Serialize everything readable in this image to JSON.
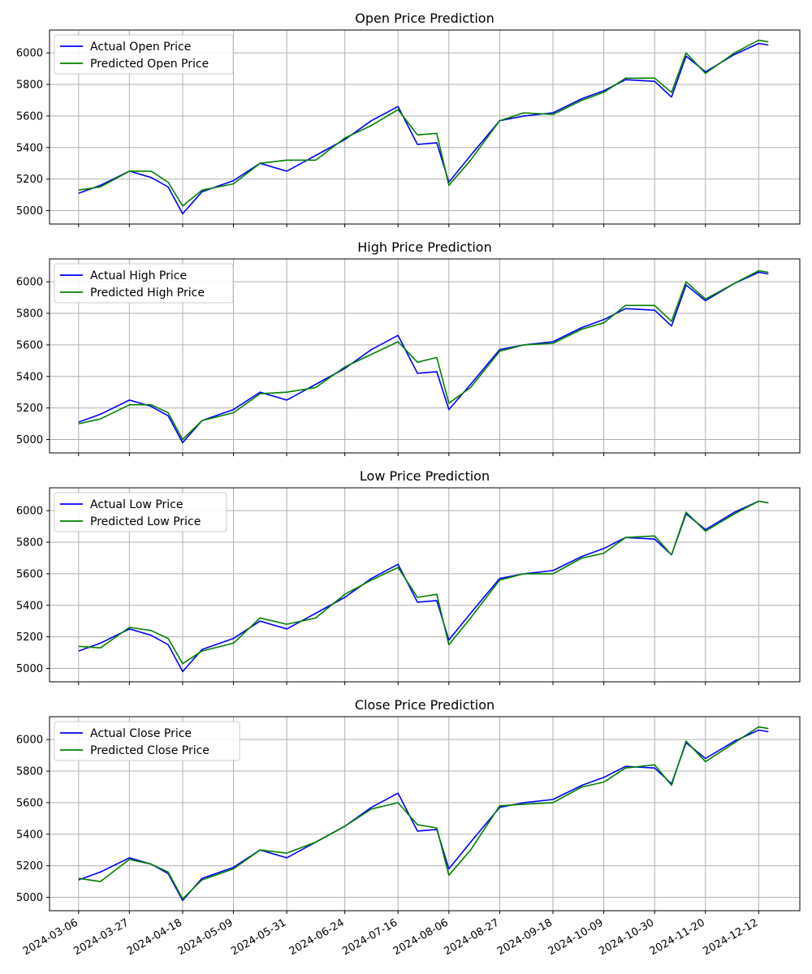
{
  "colors": {
    "actual": "#0000ff",
    "predicted": "#008000",
    "grid": "#b0b0b0",
    "axis": "#000000"
  },
  "x_axis": {
    "ticks": [
      "2024-03-06",
      "2024-03-27",
      "2024-04-18",
      "2024-05-09",
      "2024-05-31",
      "2024-06-24",
      "2024-07-16",
      "2024-08-06",
      "2024-08-27",
      "2024-09-18",
      "2024-10-09",
      "2024-10-30",
      "2024-11-20",
      "2024-12-12"
    ],
    "range": [
      "2024-02-23",
      "2024-12-29"
    ]
  },
  "chart_data": [
    {
      "type": "line",
      "title": "Open Price Prediction",
      "ylim": [
        4915,
        6145
      ],
      "yticks": [
        5000,
        5200,
        5400,
        5600,
        5800,
        6000
      ],
      "grid": true,
      "legend_position": "top-left",
      "x": [
        "2024-03-06",
        "2024-03-15",
        "2024-03-27",
        "2024-04-05",
        "2024-04-12",
        "2024-04-18",
        "2024-04-26",
        "2024-05-09",
        "2024-05-20",
        "2024-05-31",
        "2024-06-12",
        "2024-06-24",
        "2024-07-05",
        "2024-07-16",
        "2024-07-24",
        "2024-08-01",
        "2024-08-06",
        "2024-08-15",
        "2024-08-27",
        "2024-09-06",
        "2024-09-18",
        "2024-09-30",
        "2024-10-09",
        "2024-10-18",
        "2024-10-30",
        "2024-11-06",
        "2024-11-12",
        "2024-11-20",
        "2024-12-02",
        "2024-12-12",
        "2024-12-16"
      ],
      "series": [
        {
          "name": "Actual Open Price",
          "values": [
            5110,
            5160,
            5250,
            5210,
            5150,
            4980,
            5120,
            5190,
            5300,
            5250,
            5350,
            5450,
            5570,
            5660,
            5420,
            5430,
            5180,
            5350,
            5570,
            5600,
            5620,
            5710,
            5760,
            5830,
            5820,
            5720,
            5980,
            5880,
            5990,
            6060,
            6050
          ]
        },
        {
          "name": "Predicted Open Price",
          "values": [
            5130,
            5150,
            5250,
            5250,
            5180,
            5030,
            5130,
            5170,
            5300,
            5320,
            5320,
            5460,
            5540,
            5640,
            5480,
            5490,
            5160,
            5320,
            5570,
            5620,
            5610,
            5700,
            5750,
            5840,
            5840,
            5750,
            6000,
            5870,
            6000,
            6080,
            6070
          ]
        }
      ]
    },
    {
      "type": "line",
      "title": "High Price Prediction",
      "ylim": [
        4915,
        6145
      ],
      "yticks": [
        5000,
        5200,
        5400,
        5600,
        5800,
        6000
      ],
      "grid": true,
      "legend_position": "top-left",
      "x": [
        "2024-03-06",
        "2024-03-15",
        "2024-03-27",
        "2024-04-05",
        "2024-04-12",
        "2024-04-18",
        "2024-04-26",
        "2024-05-09",
        "2024-05-20",
        "2024-05-31",
        "2024-06-12",
        "2024-06-24",
        "2024-07-05",
        "2024-07-16",
        "2024-07-24",
        "2024-08-01",
        "2024-08-06",
        "2024-08-15",
        "2024-08-27",
        "2024-09-06",
        "2024-09-18",
        "2024-09-30",
        "2024-10-09",
        "2024-10-18",
        "2024-10-30",
        "2024-11-06",
        "2024-11-12",
        "2024-11-20",
        "2024-12-02",
        "2024-12-12",
        "2024-12-16"
      ],
      "series": [
        {
          "name": "Actual High Price",
          "values": [
            5110,
            5160,
            5250,
            5210,
            5150,
            4980,
            5120,
            5190,
            5300,
            5250,
            5350,
            5450,
            5570,
            5660,
            5420,
            5430,
            5190,
            5350,
            5570,
            5600,
            5620,
            5710,
            5760,
            5830,
            5820,
            5720,
            5980,
            5880,
            5990,
            6060,
            6050
          ]
        },
        {
          "name": "Predicted High Price",
          "values": [
            5100,
            5130,
            5220,
            5220,
            5170,
            5000,
            5120,
            5170,
            5290,
            5300,
            5330,
            5460,
            5540,
            5620,
            5490,
            5520,
            5230,
            5330,
            5560,
            5600,
            5610,
            5700,
            5740,
            5850,
            5850,
            5750,
            6000,
            5890,
            5990,
            6070,
            6060
          ]
        }
      ]
    },
    {
      "type": "line",
      "title": "Low Price Prediction",
      "ylim": [
        4915,
        6145
      ],
      "yticks": [
        5000,
        5200,
        5400,
        5600,
        5800,
        6000
      ],
      "grid": true,
      "legend_position": "top-left",
      "x": [
        "2024-03-06",
        "2024-03-15",
        "2024-03-27",
        "2024-04-05",
        "2024-04-12",
        "2024-04-18",
        "2024-04-26",
        "2024-05-09",
        "2024-05-20",
        "2024-05-31",
        "2024-06-12",
        "2024-06-24",
        "2024-07-05",
        "2024-07-16",
        "2024-07-24",
        "2024-08-01",
        "2024-08-06",
        "2024-08-15",
        "2024-08-27",
        "2024-09-06",
        "2024-09-18",
        "2024-09-30",
        "2024-10-09",
        "2024-10-18",
        "2024-10-30",
        "2024-11-06",
        "2024-11-12",
        "2024-11-20",
        "2024-12-02",
        "2024-12-12",
        "2024-12-16"
      ],
      "series": [
        {
          "name": "Actual Low Price",
          "values": [
            5110,
            5160,
            5250,
            5210,
            5150,
            4980,
            5120,
            5190,
            5300,
            5250,
            5350,
            5450,
            5570,
            5660,
            5420,
            5430,
            5180,
            5350,
            5570,
            5600,
            5620,
            5710,
            5760,
            5830,
            5820,
            5720,
            5980,
            5880,
            5990,
            6060,
            6050
          ]
        },
        {
          "name": "Predicted Low Price",
          "values": [
            5140,
            5130,
            5260,
            5240,
            5190,
            5030,
            5110,
            5160,
            5320,
            5280,
            5320,
            5470,
            5560,
            5640,
            5450,
            5470,
            5150,
            5320,
            5560,
            5600,
            5600,
            5700,
            5730,
            5830,
            5840,
            5720,
            5990,
            5870,
            5980,
            6060,
            6050
          ]
        }
      ]
    },
    {
      "type": "line",
      "title": "Close Price Prediction",
      "ylim": [
        4915,
        6145
      ],
      "yticks": [
        5000,
        5200,
        5400,
        5600,
        5800,
        6000
      ],
      "grid": true,
      "legend_position": "top-left",
      "x": [
        "2024-03-06",
        "2024-03-15",
        "2024-03-27",
        "2024-04-05",
        "2024-04-12",
        "2024-04-18",
        "2024-04-26",
        "2024-05-09",
        "2024-05-20",
        "2024-05-31",
        "2024-06-12",
        "2024-06-24",
        "2024-07-05",
        "2024-07-16",
        "2024-07-24",
        "2024-08-01",
        "2024-08-06",
        "2024-08-15",
        "2024-08-27",
        "2024-09-06",
        "2024-09-18",
        "2024-09-30",
        "2024-10-09",
        "2024-10-18",
        "2024-10-30",
        "2024-11-06",
        "2024-11-12",
        "2024-11-20",
        "2024-12-02",
        "2024-12-12",
        "2024-12-16"
      ],
      "series": [
        {
          "name": "Actual Close Price",
          "values": [
            5110,
            5160,
            5250,
            5210,
            5150,
            4980,
            5120,
            5190,
            5300,
            5250,
            5350,
            5450,
            5570,
            5660,
            5420,
            5430,
            5180,
            5350,
            5570,
            5600,
            5620,
            5710,
            5760,
            5830,
            5820,
            5720,
            5980,
            5880,
            5990,
            6060,
            6050
          ]
        },
        {
          "name": "Predicted Close Price",
          "values": [
            5120,
            5100,
            5240,
            5210,
            5160,
            4990,
            5110,
            5180,
            5300,
            5280,
            5350,
            5450,
            5560,
            5600,
            5460,
            5440,
            5140,
            5300,
            5580,
            5590,
            5600,
            5700,
            5730,
            5820,
            5840,
            5710,
            5990,
            5860,
            5980,
            6080,
            6070
          ]
        }
      ]
    }
  ]
}
